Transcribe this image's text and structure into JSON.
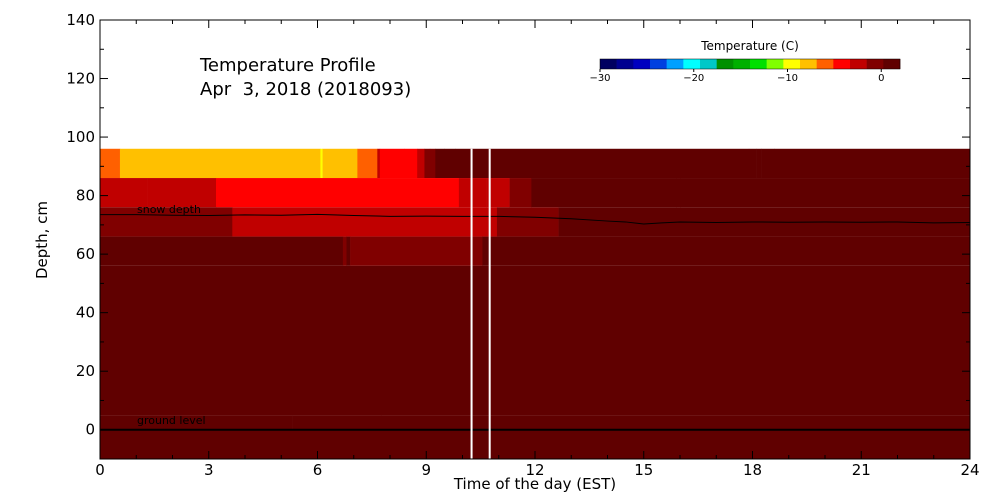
{
  "chart_data": {
    "type": "heatmap",
    "title": "Temperature Profile",
    "subtitle": "Apr  3, 2018 (2018093)",
    "xlabel": "Time of the day (EST)",
    "ylabel": "Depth, cm",
    "xlim": [
      0,
      24
    ],
    "ylim": [
      -10,
      140
    ],
    "xticks": [
      0,
      3,
      6,
      9,
      12,
      15,
      18,
      21,
      24
    ],
    "yticks": [
      0,
      20,
      40,
      60,
      80,
      100,
      120,
      140
    ],
    "colorbar": {
      "title": "Temperature (C)",
      "range": [
        -30,
        2
      ],
      "ticks": [
        -30,
        -20,
        -10,
        0
      ],
      "colors": [
        "#000060",
        "#000090",
        "#0000c0",
        "#0040e0",
        "#00a0ff",
        "#00ffff",
        "#00c8c8",
        "#009000",
        "#00b000",
        "#00e000",
        "#80ff00",
        "#ffff00",
        "#ffc000",
        "#ff6000",
        "#ff0000",
        "#c00000",
        "#800000",
        "#600000"
      ]
    },
    "layers": [
      {
        "depth": [
          86,
          96
        ],
        "segments": [
          {
            "t": [
              0,
              0.55
            ],
            "temp": -6
          },
          {
            "t": [
              0.55,
              2.75
            ],
            "temp": -7
          },
          {
            "t": [
              2.75,
              6.08
            ],
            "temp": -8
          },
          {
            "t": [
              6.08,
              6.14
            ],
            "temp": -10
          },
          {
            "t": [
              6.14,
              7.1
            ],
            "temp": -8
          },
          {
            "t": [
              7.1,
              7.65
            ],
            "temp": -6
          },
          {
            "t": [
              7.65,
              7.72
            ],
            "temp": -3
          },
          {
            "t": [
              7.72,
              8.4
            ],
            "temp": -5
          },
          {
            "t": [
              8.4,
              8.75
            ],
            "temp": -4
          },
          {
            "t": [
              8.75,
              8.95
            ],
            "temp": -2
          },
          {
            "t": [
              8.95,
              9.1
            ],
            "temp": -1
          },
          {
            "t": [
              9.1,
              9.25
            ],
            "temp": 0
          },
          {
            "t": [
              9.25,
              9.5
            ],
            "temp": 0.6
          },
          {
            "t": [
              9.5,
              9.8
            ],
            "temp": 0.3
          },
          {
            "t": [
              9.8,
              17.9
            ],
            "temp": 1.8
          },
          {
            "t": [
              17.9,
              18.1
            ],
            "temp": 1.3
          },
          {
            "t": [
              18.1,
              18.25
            ],
            "temp": 1.8
          },
          {
            "t": [
              18.25,
              18.6
            ],
            "temp": 1
          },
          {
            "t": [
              18.6,
              24
            ],
            "temp": 0.5
          }
        ]
      },
      {
        "depth": [
          76,
          86
        ],
        "segments": [
          {
            "t": [
              0,
              1.3
            ],
            "temp": -2
          },
          {
            "t": [
              1.3,
              3.2
            ],
            "temp": -3
          },
          {
            "t": [
              3.2,
              9.9
            ],
            "temp": -5
          },
          {
            "t": [
              9.9,
              10.65
            ],
            "temp": -3
          },
          {
            "t": [
              10.65,
              11.3
            ],
            "temp": -2
          },
          {
            "t": [
              11.3,
              11.9
            ],
            "temp": 0
          },
          {
            "t": [
              11.9,
              15.9
            ],
            "temp": 0.5
          },
          {
            "t": [
              15.9,
              16.0
            ],
            "temp": 1
          },
          {
            "t": [
              16.0,
              24
            ],
            "temp": 0.5
          }
        ]
      },
      {
        "depth": [
          66,
          76
        ],
        "segments": [
          {
            "t": [
              0,
              3.65
            ],
            "temp": 0
          },
          {
            "t": [
              3.65,
              10.95
            ],
            "temp": -2
          },
          {
            "t": [
              10.95,
              12.65
            ],
            "temp": 0
          },
          {
            "t": [
              12.65,
              24
            ],
            "temp": 0.5
          }
        ]
      },
      {
        "depth": [
          56,
          66
        ],
        "segments": [
          {
            "t": [
              0,
              6.7
            ],
            "temp": 0.5
          },
          {
            "t": [
              6.7,
              6.8
            ],
            "temp": 0
          },
          {
            "t": [
              6.8,
              6.9
            ],
            "temp": 0.5
          },
          {
            "t": [
              6.9,
              10.55
            ],
            "temp": 0
          },
          {
            "t": [
              10.55,
              24
            ],
            "temp": 0.5
          }
        ]
      },
      {
        "depth": [
          5,
          56
        ],
        "segments": [
          {
            "t": [
              0,
              24
            ],
            "temp": 0.5
          }
        ]
      },
      {
        "depth": [
          0,
          5
        ],
        "segments": [
          {
            "t": [
              0,
              5.3
            ],
            "temp": 1.3
          },
          {
            "t": [
              5.3,
              7.75
            ],
            "temp": 0.5
          },
          {
            "t": [
              7.75,
              24
            ],
            "temp": 1.3
          }
        ]
      },
      {
        "depth": [
          -10,
          0
        ],
        "segments": [
          {
            "t": [
              0,
              24
            ],
            "temp": 0.5
          }
        ]
      }
    ],
    "snow_depth": {
      "label": "snow depth",
      "t": [
        0,
        1,
        2,
        3,
        4,
        5,
        6,
        7,
        8,
        9,
        10,
        11,
        12,
        13,
        14,
        14.5,
        15,
        15.5,
        16,
        17,
        18,
        19,
        20,
        21,
        22,
        23,
        24
      ],
      "depth": [
        73.5,
        73.5,
        73.3,
        73.2,
        73.4,
        73.3,
        73.6,
        73.2,
        72.9,
        73,
        72.9,
        72.9,
        72.6,
        72.1,
        71.3,
        71,
        70.3,
        70.7,
        71,
        70.8,
        71,
        70.9,
        71,
        70.9,
        71,
        70.7,
        70.8
      ]
    },
    "ground_level": {
      "label": "ground level",
      "depth": 0
    },
    "markers": [
      10.25,
      10.75
    ]
  }
}
